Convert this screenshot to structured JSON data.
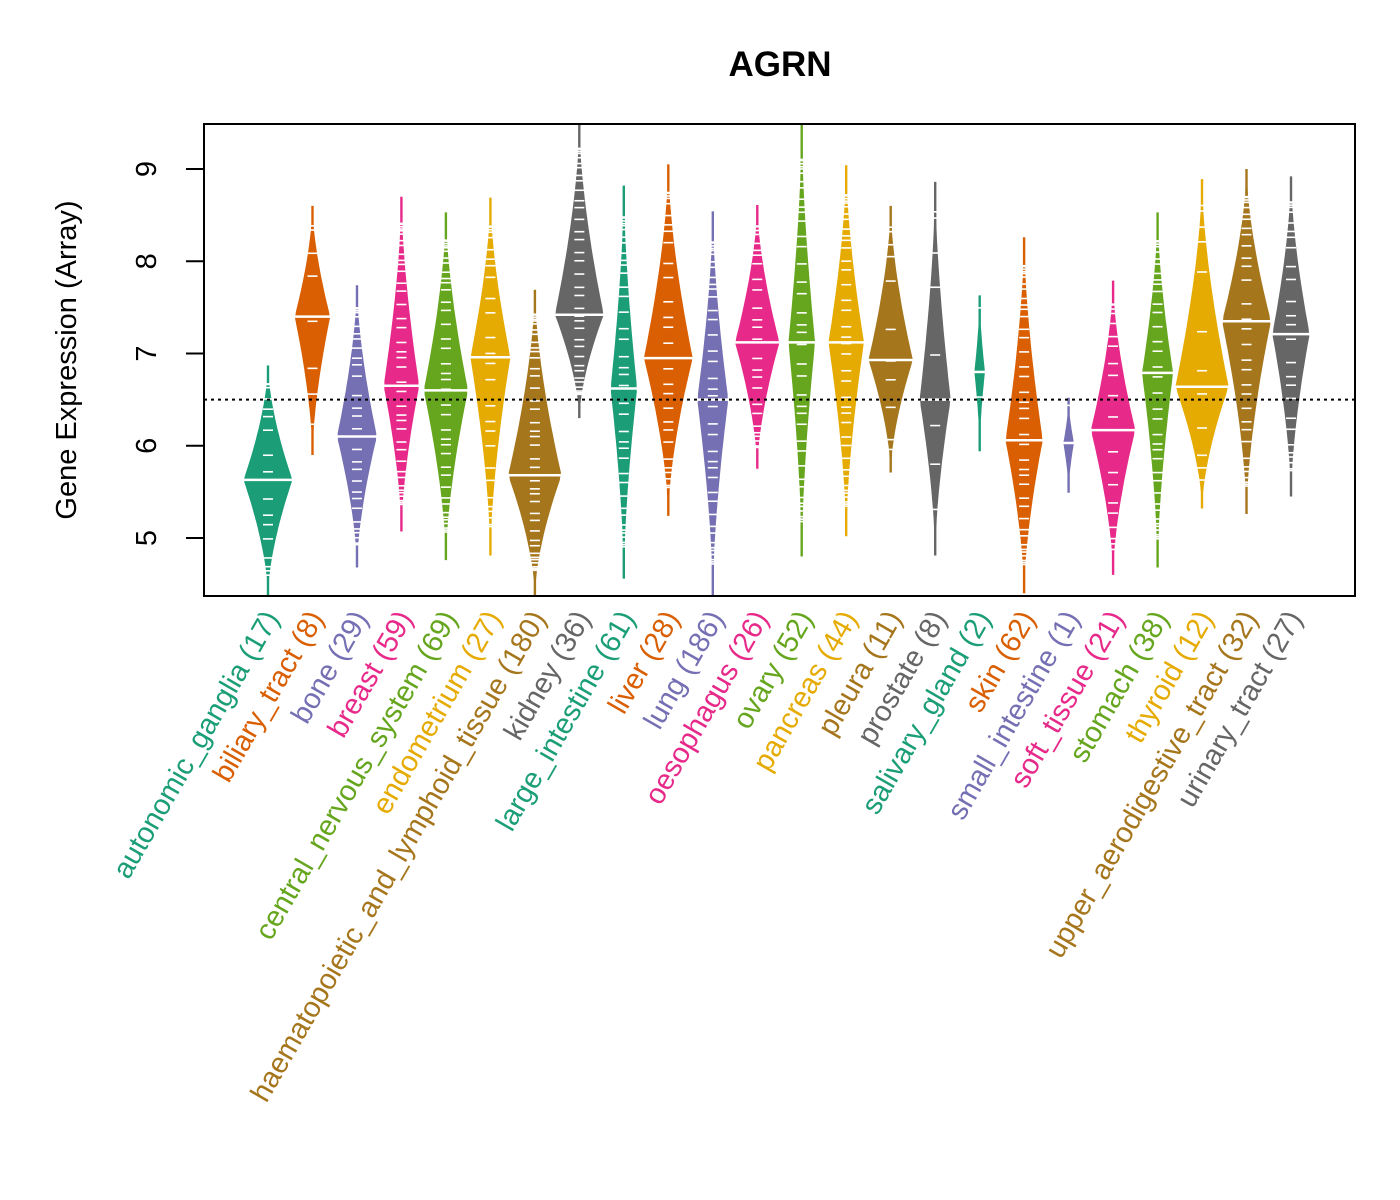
{
  "chart_data": {
    "type": "violin",
    "title": "AGRN",
    "xlabel": "",
    "ylabel": "Gene Expression (Array)",
    "ylim": [
      4.37,
      9.5
    ],
    "yticks": [
      5,
      6,
      7,
      8,
      9
    ],
    "reference_line": {
      "value": 6.5,
      "style": "dotted",
      "color": "#000000"
    },
    "grid": false,
    "legend": "none",
    "categories": [
      {
        "name": "autonomic_ganglia",
        "n": 17,
        "label": "autonomic_ganglia (17)",
        "color": "#1B9E77",
        "min": 4.37,
        "max": 6.87,
        "median": 5.63,
        "width": 0.55
      },
      {
        "name": "biliary_tract",
        "n": 8,
        "label": "biliary_tract (8)",
        "color": "#D95F02",
        "min": 5.9,
        "max": 8.6,
        "median": 7.4,
        "width": 0.4
      },
      {
        "name": "bone",
        "n": 29,
        "label": "bone (29)",
        "color": "#7570B3",
        "min": 4.68,
        "max": 7.74,
        "median": 6.1,
        "width": 0.45
      },
      {
        "name": "breast",
        "n": 59,
        "label": "breast (59)",
        "color": "#E7298A",
        "min": 5.07,
        "max": 8.7,
        "median": 6.65,
        "width": 0.4
      },
      {
        "name": "central_nervous_system",
        "n": 69,
        "label": "central_nervous_system (69)",
        "color": "#66A61E",
        "min": 4.76,
        "max": 8.53,
        "median": 6.6,
        "width": 0.5
      },
      {
        "name": "endometrium",
        "n": 27,
        "label": "endometrium (27)",
        "color": "#E6AB02",
        "min": 4.81,
        "max": 8.69,
        "median": 6.96,
        "width": 0.45
      },
      {
        "name": "haematopoietic_and_lymphoid_tissue",
        "n": 180,
        "label": "haematopoietic_and_lymphoid_tissue (180)",
        "color": "#A6761D",
        "min": 4.3,
        "max": 7.69,
        "median": 5.68,
        "width": 0.6
      },
      {
        "name": "kidney",
        "n": 36,
        "label": "kidney (36)",
        "color": "#666666",
        "min": 6.3,
        "max": 9.5,
        "median": 7.42,
        "width": 0.55
      },
      {
        "name": "large_intestine",
        "n": 61,
        "label": "large_intestine (61)",
        "color": "#1B9E77",
        "min": 4.56,
        "max": 8.82,
        "median": 6.62,
        "width": 0.3
      },
      {
        "name": "liver",
        "n": 28,
        "label": "liver (28)",
        "color": "#D95F02",
        "min": 5.24,
        "max": 9.05,
        "median": 6.95,
        "width": 0.55
      },
      {
        "name": "lung",
        "n": 186,
        "label": "lung (186)",
        "color": "#7570B3",
        "min": 4.37,
        "max": 8.54,
        "median": 6.5,
        "width": 0.35
      },
      {
        "name": "oesophagus",
        "n": 26,
        "label": "oesophagus (26)",
        "color": "#E7298A",
        "min": 5.75,
        "max": 8.61,
        "median": 7.12,
        "width": 0.5
      },
      {
        "name": "ovary",
        "n": 52,
        "label": "ovary (52)",
        "color": "#66A61E",
        "min": 4.8,
        "max": 9.5,
        "median": 7.12,
        "width": 0.3
      },
      {
        "name": "pancreas",
        "n": 44,
        "label": "pancreas (44)",
        "color": "#E6AB02",
        "min": 5.02,
        "max": 9.04,
        "median": 7.12,
        "width": 0.4
      },
      {
        "name": "pleura",
        "n": 11,
        "label": "pleura (11)",
        "color": "#A6761D",
        "min": 5.71,
        "max": 8.6,
        "median": 6.93,
        "width": 0.5
      },
      {
        "name": "prostate",
        "n": 8,
        "label": "prostate (8)",
        "color": "#666666",
        "min": 4.81,
        "max": 8.86,
        "median": 6.5,
        "width": 0.35
      },
      {
        "name": "salivary_gland",
        "n": 2,
        "label": "salivary_gland (2)",
        "color": "#1B9E77",
        "min": 5.94,
        "max": 7.63,
        "median": 6.8,
        "width": 0.12
      },
      {
        "name": "skin",
        "n": 62,
        "label": "skin (62)",
        "color": "#D95F02",
        "min": 4.4,
        "max": 8.26,
        "median": 6.06,
        "width": 0.42
      },
      {
        "name": "small_intestine",
        "n": 1,
        "label": "small_intestine (1)",
        "color": "#7570B3",
        "min": 5.49,
        "max": 6.52,
        "median": 6.03,
        "width": 0.12
      },
      {
        "name": "soft_tissue",
        "n": 21,
        "label": "soft_tissue (21)",
        "color": "#E7298A",
        "min": 4.6,
        "max": 7.79,
        "median": 6.17,
        "width": 0.5
      },
      {
        "name": "stomach",
        "n": 38,
        "label": "stomach (38)",
        "color": "#66A61E",
        "min": 4.68,
        "max": 8.53,
        "median": 6.79,
        "width": 0.35
      },
      {
        "name": "thyroid",
        "n": 12,
        "label": "thyroid (12)",
        "color": "#E6AB02",
        "min": 5.32,
        "max": 8.89,
        "median": 6.64,
        "width": 0.6
      },
      {
        "name": "upper_aerodigestive_tract",
        "n": 32,
        "label": "upper_aerodigestive_tract (32)",
        "color": "#A6761D",
        "min": 5.26,
        "max": 9.0,
        "median": 7.35,
        "width": 0.55
      },
      {
        "name": "urinary_tract",
        "n": 27,
        "label": "urinary_tract (27)",
        "color": "#666666",
        "min": 5.45,
        "max": 8.92,
        "median": 7.21,
        "width": 0.42
      }
    ]
  }
}
